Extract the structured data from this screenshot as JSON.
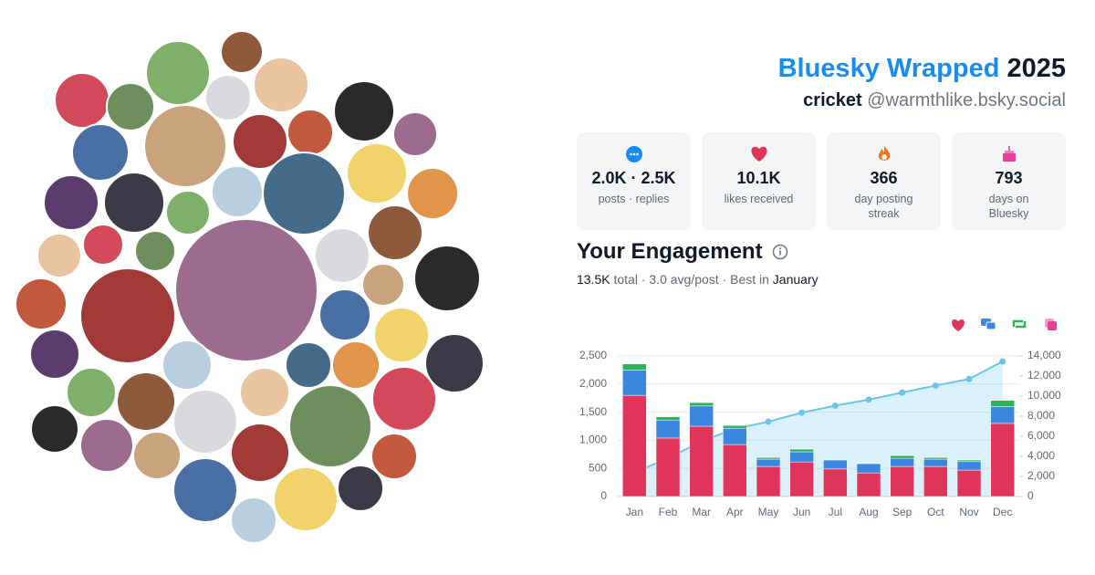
{
  "header": {
    "title": "Bluesky Wrapped",
    "year": "2025",
    "display_name": "cricket",
    "handle": "@warmthlike.bsky.social"
  },
  "stats": [
    {
      "value": "2.0K · 2.5K",
      "label": "posts · replies"
    },
    {
      "value": "10.1K",
      "label": "likes received"
    },
    {
      "value": "366",
      "label": "day posting streak"
    },
    {
      "value": "793",
      "label": "days on Bluesky"
    }
  ],
  "engagement": {
    "title": "Your Engagement",
    "total": "13.5K",
    "summary": "total · 3.0 avg/post · Best in",
    "best_month": "January"
  },
  "chart_data": {
    "type": "bar",
    "stacked": true,
    "categories": [
      "Jan",
      "Feb",
      "Mar",
      "Apr",
      "May",
      "Jun",
      "Jul",
      "Aug",
      "Sep",
      "Oct",
      "Nov",
      "Dec"
    ],
    "series": [
      {
        "color": "#e0355a",
        "values": [
          1800,
          1040,
          1250,
          925,
          535,
          615,
          490,
          420,
          535,
          535,
          470,
          1300
        ]
      },
      {
        "color": "#3a86e0",
        "values": [
          450,
          320,
          360,
          290,
          130,
          180,
          160,
          165,
          145,
          130,
          150,
          300
        ]
      },
      {
        "color": "#2bb35a",
        "values": [
          110,
          60,
          60,
          50,
          30,
          50,
          10,
          10,
          50,
          30,
          30,
          110
        ]
      },
      {
        "color": "#e8409a",
        "values": [
          5,
          5,
          5,
          5,
          5,
          5,
          5,
          5,
          5,
          5,
          5,
          5
        ]
      },
      {
        "type": "line",
        "axis": "y2",
        "color": "#6cc4ea",
        "values": [
          2400,
          3800,
          5500,
          6750,
          7450,
          8350,
          9050,
          9650,
          10350,
          11050,
          11700,
          13450
        ]
      }
    ],
    "ylim": [
      0,
      2500
    ],
    "yticks": [
      0,
      500,
      {
        "value": 1000,
        "label": "1,000"
      },
      {
        "value": 1500,
        "label": "1,500"
      },
      {
        "value": 2000,
        "label": "2,000"
      },
      {
        "value": 2500,
        "label": "2,500"
      }
    ],
    "y2lim": [
      0,
      14000
    ],
    "y2ticks": [
      0,
      {
        "value": 2000,
        "label": "2,000"
      },
      {
        "value": 4000,
        "label": "4,000"
      },
      {
        "value": 6000,
        "label": "6,000"
      },
      {
        "value": 8000,
        "label": "8,000"
      },
      {
        "value": 10000,
        "label": "10,000"
      },
      {
        "value": 12000,
        "label": "12,000"
      },
      {
        "value": 14000,
        "label": "14,000"
      }
    ],
    "grid": true
  }
}
